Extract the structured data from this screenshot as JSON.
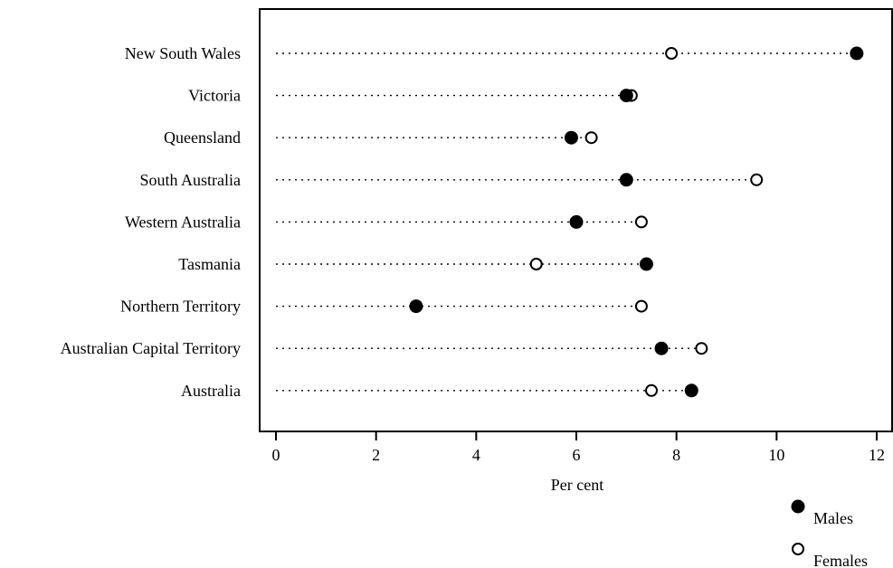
{
  "chart_data": {
    "type": "scatter",
    "subtype": "dot-plot",
    "title": "",
    "xlabel": "Per cent",
    "ylabel": "",
    "xlim": [
      0,
      12
    ],
    "xticks": [
      0,
      2,
      4,
      6,
      8,
      10,
      12
    ],
    "grid": false,
    "legend_position": "bottom-right",
    "categories": [
      "New South Wales",
      "Victoria",
      "Queensland",
      "South Australia",
      "Western Australia",
      "Tasmania",
      "Northern Territory",
      "Australian Capital Territory",
      "Australia"
    ],
    "series": [
      {
        "name": "Males",
        "marker": "filled-circle",
        "values": [
          11.6,
          7.0,
          5.9,
          7.0,
          6.0,
          7.4,
          2.8,
          7.7,
          8.3
        ]
      },
      {
        "name": "Females",
        "marker": "open-circle",
        "values": [
          7.9,
          7.1,
          6.3,
          9.6,
          7.3,
          5.2,
          7.3,
          8.5,
          7.5
        ]
      }
    ]
  }
}
